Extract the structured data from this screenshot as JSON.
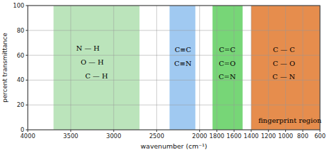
{
  "chart_data": {
    "type": "span",
    "xlabel": "wavenumber (cm⁻¹)",
    "ylabel": "percent transmittance",
    "xlim": [
      4000,
      600
    ],
    "ylim": [
      0,
      100
    ],
    "xticks": [
      4000,
      3500,
      3000,
      2500,
      2000,
      1800,
      1600,
      1400,
      1200,
      1000,
      800,
      600
    ],
    "yticks": [
      0,
      20,
      40,
      60,
      80,
      100
    ],
    "grid": true,
    "regions": [
      {
        "xmin": 3700,
        "xmax": 2700,
        "color": "#aaddaa"
      },
      {
        "xmin": 2350,
        "xmax": 2050,
        "color": "#88bbee"
      },
      {
        "xmin": 1850,
        "xmax": 1500,
        "color": "#55cc55"
      },
      {
        "xmin": 1400,
        "xmax": 600,
        "color": "#e07020"
      }
    ],
    "annotations": [
      {
        "text": "N — H",
        "x": 3300,
        "y": 68
      },
      {
        "text": "O — H",
        "x": 3250,
        "y": 57
      },
      {
        "text": "C — H",
        "x": 3200,
        "y": 46
      },
      {
        "text": "C≡C",
        "x": 2195,
        "y": 67
      },
      {
        "text": "C≡N",
        "x": 2195,
        "y": 56
      },
      {
        "text": "C=C",
        "x": 1680,
        "y": 67
      },
      {
        "text": "C=O",
        "x": 1680,
        "y": 56
      },
      {
        "text": "C=N",
        "x": 1680,
        "y": 45
      },
      {
        "text": "C — C",
        "x": 1020,
        "y": 67
      },
      {
        "text": "C — O",
        "x": 1020,
        "y": 56
      },
      {
        "text": "C — N",
        "x": 1020,
        "y": 45
      },
      {
        "text": "fingerprint region",
        "x": 950,
        "y": 10
      }
    ]
  }
}
